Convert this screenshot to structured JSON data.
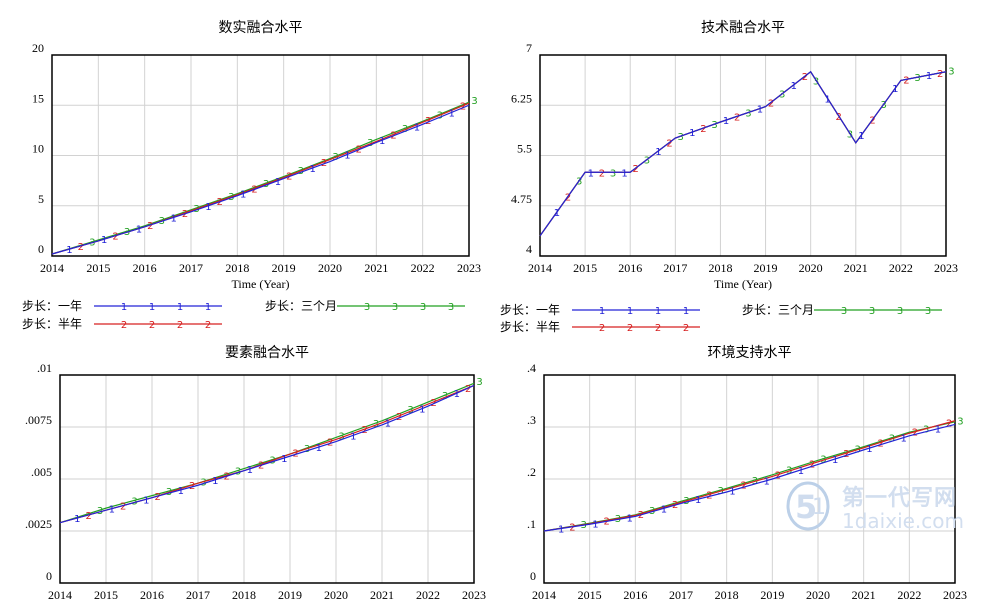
{
  "x_label": "Time (Year)",
  "legend": {
    "step_year": "步长：一年",
    "step_half": "步长：半年",
    "step_quarter": "步长：三个月",
    "marker_year": "1",
    "marker_half": "2",
    "marker_quarter": "3"
  },
  "colors": {
    "year": "#2323d6",
    "half": "#d62020",
    "quarter": "#22a022",
    "axis": "#000000",
    "grid": "#d2d2d2"
  },
  "watermark": {
    "line1": "第一代写网",
    "line2": "1daixie.com"
  },
  "chart_data": [
    {
      "type": "line",
      "title": "数实融合水平",
      "xlabel": "Time (Year)",
      "x": [
        2014,
        2015,
        2016,
        2017,
        2018,
        2019,
        2020,
        2021,
        2022,
        2023
      ],
      "xlim": [
        2014,
        2023
      ],
      "ylim": [
        0,
        20
      ],
      "yticks": [
        "0",
        "5",
        "10",
        "15",
        "20"
      ],
      "ytick_values": [
        0,
        5,
        10,
        15,
        20
      ],
      "series": [
        {
          "name": "步长：一年",
          "values": [
            0.2,
            1.5,
            2.9,
            4.4,
            6.0,
            7.7,
            9.4,
            11.3,
            13.1,
            15.0
          ]
        },
        {
          "name": "步长：半年",
          "values": [
            0.2,
            1.5,
            2.9,
            4.5,
            6.1,
            7.8,
            9.6,
            11.4,
            13.3,
            15.2
          ]
        },
        {
          "name": "步长：三个月",
          "values": [
            0.2,
            1.6,
            3.0,
            4.6,
            6.2,
            7.9,
            9.7,
            11.6,
            13.4,
            15.3
          ]
        }
      ]
    },
    {
      "type": "line",
      "title": "技术融合水平",
      "xlabel": "Time (Year)",
      "x": [
        2014,
        2015,
        2016,
        2017,
        2018,
        2019,
        2020,
        2021,
        2022,
        2023
      ],
      "xlim": [
        2014,
        2023
      ],
      "ylim": [
        4,
        7
      ],
      "yticks": [
        "4",
        "4.75",
        "5.5",
        "6.25",
        "7"
      ],
      "ytick_values": [
        4,
        4.75,
        5.5,
        6.25,
        7
      ],
      "series": [
        {
          "name": "步长：一年",
          "values": [
            4.3,
            5.25,
            5.25,
            5.76,
            6.0,
            6.23,
            6.75,
            5.69,
            6.62,
            6.75
          ]
        },
        {
          "name": "步长：半年",
          "values": [
            4.3,
            5.25,
            5.25,
            5.76,
            6.0,
            6.23,
            6.75,
            5.69,
            6.62,
            6.75
          ]
        },
        {
          "name": "步长：三个月",
          "values": [
            4.3,
            5.25,
            5.25,
            5.76,
            6.0,
            6.23,
            6.75,
            5.69,
            6.62,
            6.75
          ]
        }
      ]
    },
    {
      "type": "line",
      "title": "要素融合水平",
      "xlabel": "",
      "x": [
        2014,
        2015,
        2016,
        2017,
        2018,
        2019,
        2020,
        2021,
        2022,
        2023
      ],
      "xlim": [
        2014,
        2023
      ],
      "ylim": [
        0,
        0.01
      ],
      "yticks": [
        "0",
        ".0025",
        ".005",
        ".0075",
        ".01"
      ],
      "ytick_values": [
        0,
        0.0025,
        0.005,
        0.0075,
        0.01
      ],
      "series": [
        {
          "name": "步长：一年",
          "values": [
            0.0029,
            0.0035,
            0.0041,
            0.0047,
            0.0054,
            0.0061,
            0.0068,
            0.0076,
            0.0085,
            0.0095
          ]
        },
        {
          "name": "步长：半年",
          "values": [
            0.0029,
            0.0035,
            0.0041,
            0.0048,
            0.0054,
            0.0062,
            0.0069,
            0.0077,
            0.0086,
            0.0095
          ]
        },
        {
          "name": "步长：三个月",
          "values": [
            0.0029,
            0.0036,
            0.0042,
            0.0048,
            0.0055,
            0.0062,
            0.007,
            0.0078,
            0.0087,
            0.0096
          ]
        }
      ]
    },
    {
      "type": "line",
      "title": "环境支持水平",
      "xlabel": "",
      "x": [
        2014,
        2015,
        2016,
        2017,
        2018,
        2019,
        2020,
        2021,
        2022,
        2023
      ],
      "xlim": [
        2014,
        2023
      ],
      "ylim": [
        0,
        0.4
      ],
      "yticks": [
        "0",
        ".1",
        ".2",
        ".3",
        ".4"
      ],
      "ytick_values": [
        0,
        0.1,
        0.2,
        0.3,
        0.4
      ],
      "series": [
        {
          "name": "步长：一年",
          "values": [
            0.1,
            0.113,
            0.128,
            0.153,
            0.175,
            0.2,
            0.228,
            0.256,
            0.283,
            0.305
          ]
        },
        {
          "name": "步长：半年",
          "values": [
            0.1,
            0.114,
            0.13,
            0.155,
            0.18,
            0.205,
            0.233,
            0.26,
            0.288,
            0.312
          ]
        },
        {
          "name": "步长：三个月",
          "values": [
            0.1,
            0.115,
            0.131,
            0.157,
            0.182,
            0.208,
            0.236,
            0.262,
            0.29,
            0.31
          ]
        }
      ]
    }
  ]
}
